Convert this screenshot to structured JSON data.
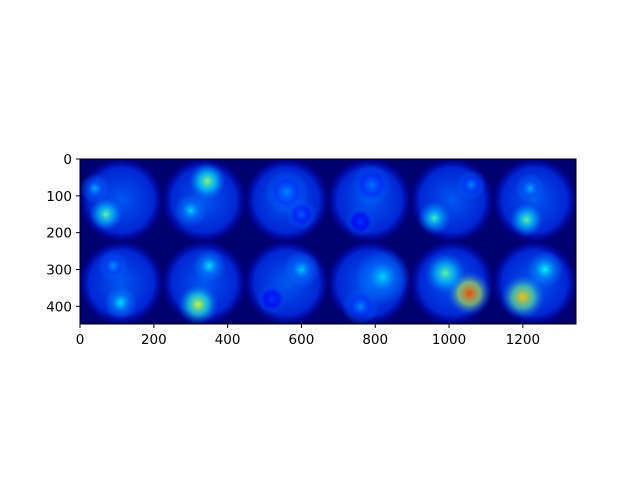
{
  "chart_data": {
    "type": "heatmap",
    "title": "",
    "xlabel": "",
    "ylabel": "",
    "xlim": [
      0,
      1344
    ],
    "ylim": [
      448,
      0
    ],
    "grid": false,
    "x_ticks": [
      0,
      200,
      400,
      600,
      800,
      1000,
      1200
    ],
    "y_ticks": [
      0,
      100,
      200,
      300,
      400
    ],
    "image": {
      "layout": {
        "rows": 2,
        "cols": 6,
        "tile_size": 224
      },
      "colormap": "jet",
      "background": "#000066",
      "tiles": [
        {
          "row": 0,
          "col": 0,
          "hotspots": [
            {
              "x": 70,
              "y": 150,
              "r": 45,
              "intensity": 0.55
            },
            {
              "x": 40,
              "y": 80,
              "r": 40,
              "intensity": 0.35
            }
          ]
        },
        {
          "row": 0,
          "col": 1,
          "hotspots": [
            {
              "x": 345,
              "y": 60,
              "r": 50,
              "intensity": 0.6
            },
            {
              "x": 300,
              "y": 140,
              "r": 45,
              "intensity": 0.4
            }
          ]
        },
        {
          "row": 0,
          "col": 2,
          "hotspots": [
            {
              "x": 560,
              "y": 90,
              "r": 60,
              "intensity": 0.3
            },
            {
              "x": 600,
              "y": 150,
              "r": 40,
              "intensity": 0.25
            }
          ]
        },
        {
          "row": 0,
          "col": 3,
          "hotspots": [
            {
              "x": 790,
              "y": 70,
              "r": 55,
              "intensity": 0.28
            },
            {
              "x": 760,
              "y": 170,
              "r": 40,
              "intensity": 0.2
            }
          ]
        },
        {
          "row": 0,
          "col": 4,
          "hotspots": [
            {
              "x": 960,
              "y": 160,
              "r": 45,
              "intensity": 0.5
            },
            {
              "x": 1060,
              "y": 70,
              "r": 40,
              "intensity": 0.3
            }
          ]
        },
        {
          "row": 0,
          "col": 5,
          "hotspots": [
            {
              "x": 1210,
              "y": 165,
              "r": 45,
              "intensity": 0.55
            },
            {
              "x": 1220,
              "y": 80,
              "r": 40,
              "intensity": 0.35
            }
          ]
        },
        {
          "row": 1,
          "col": 0,
          "hotspots": [
            {
              "x": 110,
              "y": 390,
              "r": 45,
              "intensity": 0.42
            },
            {
              "x": 90,
              "y": 290,
              "r": 40,
              "intensity": 0.32
            }
          ]
        },
        {
          "row": 1,
          "col": 1,
          "hotspots": [
            {
              "x": 320,
              "y": 395,
              "r": 55,
              "intensity": 0.68
            },
            {
              "x": 350,
              "y": 290,
              "r": 45,
              "intensity": 0.42
            }
          ]
        },
        {
          "row": 1,
          "col": 2,
          "hotspots": [
            {
              "x": 600,
              "y": 300,
              "r": 50,
              "intensity": 0.38
            },
            {
              "x": 520,
              "y": 380,
              "r": 40,
              "intensity": 0.2
            }
          ]
        },
        {
          "row": 1,
          "col": 3,
          "hotspots": [
            {
              "x": 820,
              "y": 320,
              "r": 75,
              "intensity": 0.4
            },
            {
              "x": 760,
              "y": 400,
              "r": 50,
              "intensity": 0.3
            }
          ]
        },
        {
          "row": 1,
          "col": 4,
          "hotspots": [
            {
              "x": 1055,
              "y": 365,
              "r": 60,
              "intensity": 0.95
            },
            {
              "x": 990,
              "y": 310,
              "r": 55,
              "intensity": 0.55
            }
          ]
        },
        {
          "row": 1,
          "col": 5,
          "hotspots": [
            {
              "x": 1200,
              "y": 375,
              "r": 60,
              "intensity": 0.8
            },
            {
              "x": 1260,
              "y": 300,
              "r": 50,
              "intensity": 0.45
            }
          ]
        }
      ]
    }
  }
}
